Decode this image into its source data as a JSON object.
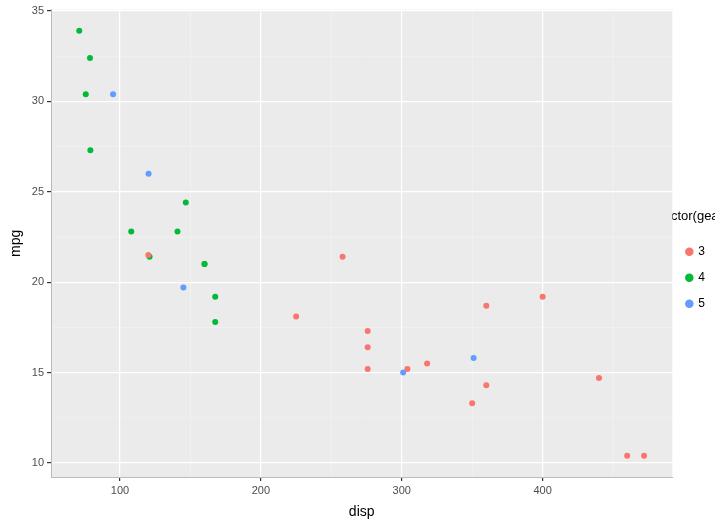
{
  "chart_data": {
    "type": "scatter",
    "x_label": "disp",
    "y_label": "mpg",
    "legend_title": "factor(gear)",
    "legend": "right",
    "grid": true,
    "marker": "circle",
    "xlim": [
      51.055,
      492.045
    ],
    "xticks": [
      100,
      200,
      300,
      400
    ],
    "ylim": [
      9.225,
      35.075
    ],
    "yticks": [
      10,
      15,
      20,
      25,
      30,
      35
    ],
    "series": [
      {
        "name": "3",
        "color": "#F8766D",
        "x": [
          258,
          360,
          225,
          360,
          275.8,
          275.8,
          275.8,
          472,
          460,
          440,
          120.1,
          318,
          304,
          350,
          400
        ],
        "values": [
          21.4,
          18.7,
          18.1,
          14.3,
          16.4,
          17.3,
          15.2,
          10.4,
          10.4,
          14.7,
          21.5,
          15.5,
          15.2,
          13.3,
          19.2
        ]
      },
      {
        "name": "4",
        "color": "#00BA38",
        "x": [
          160,
          160,
          108,
          146.7,
          140.8,
          167.6,
          167.6,
          78.7,
          75.7,
          71.1,
          79,
          121
        ],
        "values": [
          21,
          21,
          22.8,
          24.4,
          22.8,
          19.2,
          17.8,
          32.4,
          30.4,
          33.9,
          27.3,
          21.4
        ]
      },
      {
        "name": "5",
        "color": "#619CFF",
        "x": [
          120.3,
          95.1,
          351,
          145,
          301
        ],
        "values": [
          26,
          30.4,
          15.8,
          19.7,
          15
        ]
      }
    ]
  }
}
